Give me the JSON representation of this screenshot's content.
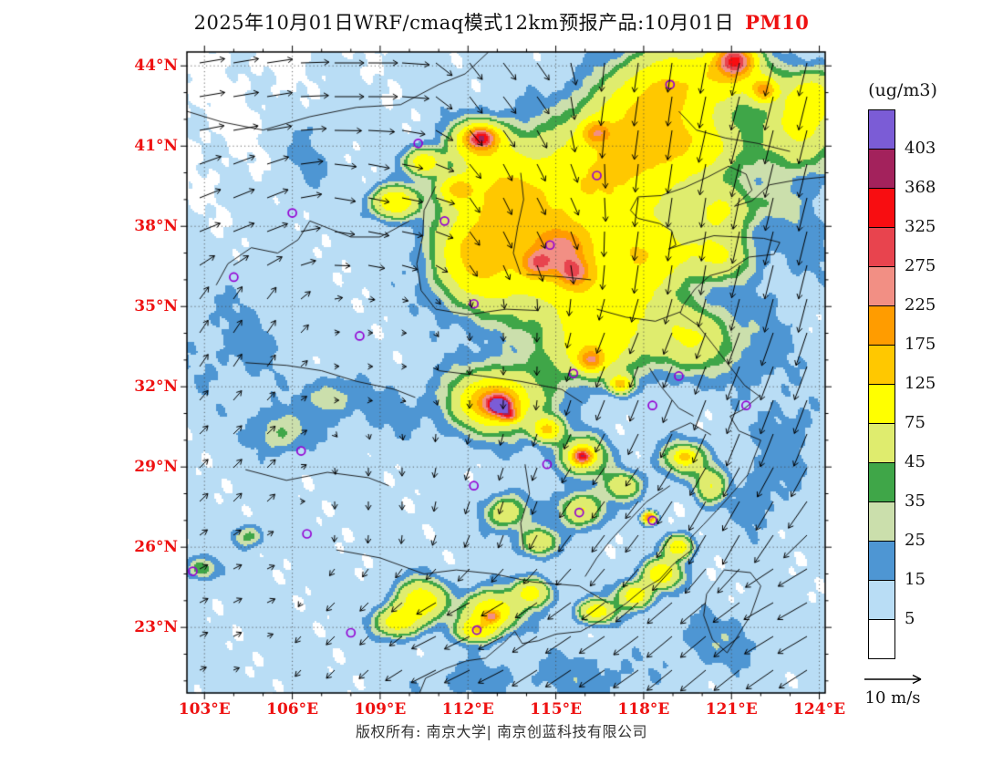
{
  "header": {
    "title": "2025年10月01日WRF/cmaq模式12km预报产品:10月01日",
    "species": "PM10"
  },
  "colors": {
    "axis_label": "#ee1111",
    "species": "#ee1111"
  },
  "axes": {
    "lat": [
      {
        "label": "44°N",
        "value": 44
      },
      {
        "label": "41°N",
        "value": 41
      },
      {
        "label": "38°N",
        "value": 38
      },
      {
        "label": "35°N",
        "value": 35
      },
      {
        "label": "32°N",
        "value": 32
      },
      {
        "label": "29°N",
        "value": 29
      },
      {
        "label": "26°N",
        "value": 26
      },
      {
        "label": "23°N",
        "value": 23
      }
    ],
    "lon": [
      {
        "label": "103°E",
        "value": 103
      },
      {
        "label": "106°E",
        "value": 106
      },
      {
        "label": "109°E",
        "value": 109
      },
      {
        "label": "112°E",
        "value": 112
      },
      {
        "label": "115°E",
        "value": 115
      },
      {
        "label": "118°E",
        "value": 118
      },
      {
        "label": "121°E",
        "value": 121
      },
      {
        "label": "124°E",
        "value": 124
      }
    ]
  },
  "colorbar": {
    "title": "(ug/m3)",
    "labels": [
      403,
      368,
      325,
      275,
      225,
      175,
      125,
      75,
      45,
      35,
      25,
      15,
      5
    ],
    "colors_top_to_bottom": [
      "#7B5CD6",
      "#A3225C",
      "#F80D11",
      "#E8444E",
      "#F28F84",
      "#FF9C00",
      "#FFC800",
      "#FFFF00",
      "#DFEC6E",
      "#3FA648",
      "#CBDFAC",
      "#4E96D3",
      "#B9DDF5",
      "#FFFFFF"
    ]
  },
  "wind_ref": {
    "label": "10 m/s",
    "speed_ms": 10
  },
  "footer": {
    "text": "版权所有: 南京大学| 南京创蓝科技有限公司"
  },
  "chart_data": {
    "type": "heatmap",
    "title": "2025年10月01日WRF/cmaq模式12km预报产品:10月01日 PM10",
    "units": "ug/m3",
    "legend_title": "(ug/m3)",
    "lon_range": [
      102.4,
      124.2
    ],
    "lat_range": [
      20.55,
      44.52
    ],
    "levels": [
      5,
      15,
      25,
      35,
      45,
      75,
      125,
      175,
      225,
      275,
      325,
      368,
      403
    ],
    "colors_low_to_high": [
      "#FFFFFF",
      "#B9DDF5",
      "#4E96D3",
      "#CBDFAC",
      "#3FA648",
      "#DFEC6E",
      "#FFFF00",
      "#FFC800",
      "#FF9C00",
      "#F28F84",
      "#E8444E",
      "#F80D11",
      "#A3225C",
      "#7B5CD6"
    ],
    "base_level": 8.5,
    "hotspots": [
      [
        116.5,
        39.5,
        2.6,
        2.2,
        95
      ],
      [
        114.0,
        37.0,
        2.2,
        2.2,
        95
      ],
      [
        117.8,
        41.5,
        1.8,
        1.8,
        90
      ],
      [
        118.8,
        43.2,
        1.4,
        1.4,
        95
      ],
      [
        116.8,
        35.2,
        1.8,
        1.6,
        85
      ],
      [
        113.2,
        39.3,
        1.4,
        1.4,
        85
      ],
      [
        112.2,
        36.9,
        1.2,
        1.5,
        90
      ],
      [
        118.2,
        37.0,
        1.5,
        1.2,
        80
      ],
      [
        119.9,
        41.0,
        1.4,
        1.2,
        70
      ],
      [
        120.7,
        38.6,
        1.0,
        0.9,
        65
      ],
      [
        120.6,
        36.9,
        1.1,
        0.9,
        60
      ],
      [
        119.6,
        33.8,
        1.4,
        1.2,
        65
      ],
      [
        116.2,
        33.4,
        1.4,
        1.1,
        75
      ],
      [
        123.2,
        41.6,
        1.3,
        1.5,
        70
      ],
      [
        123.8,
        42.9,
        0.9,
        0.9,
        70
      ],
      [
        115.2,
        37.2,
        0.8,
        0.7,
        145
      ],
      [
        115.6,
        36.3,
        0.5,
        0.5,
        185
      ],
      [
        114.4,
        36.6,
        0.5,
        0.45,
        160
      ],
      [
        116.4,
        41.5,
        0.45,
        0.4,
        140
      ],
      [
        112.45,
        41.3,
        0.45,
        0.35,
        270
      ],
      [
        112.4,
        41.1,
        1.0,
        0.8,
        100
      ],
      [
        121.1,
        44.2,
        0.55,
        0.5,
        270
      ],
      [
        120.9,
        43.7,
        1.2,
        1.0,
        105
      ],
      [
        122.1,
        43.1,
        0.4,
        0.4,
        150
      ],
      [
        109.5,
        38.9,
        0.7,
        0.55,
        110
      ],
      [
        110.5,
        40.4,
        0.55,
        0.45,
        100
      ],
      [
        111.6,
        39.4,
        0.6,
        0.5,
        105
      ],
      [
        113.0,
        31.5,
        1.6,
        1.2,
        85
      ],
      [
        112.9,
        31.4,
        0.8,
        0.6,
        150
      ],
      [
        113.05,
        31.35,
        0.38,
        0.3,
        260
      ],
      [
        113.1,
        31.25,
        0.22,
        0.18,
        430
      ],
      [
        113.4,
        30.95,
        0.3,
        0.22,
        210
      ],
      [
        114.7,
        30.4,
        0.45,
        0.4,
        125
      ],
      [
        115.9,
        29.4,
        0.8,
        0.7,
        80
      ],
      [
        115.9,
        29.4,
        0.28,
        0.25,
        290
      ],
      [
        116.2,
        33.0,
        0.4,
        0.35,
        160
      ],
      [
        117.2,
        32.1,
        0.35,
        0.3,
        130
      ],
      [
        110.4,
        24.0,
        0.8,
        0.7,
        95
      ],
      [
        109.6,
        23.2,
        0.7,
        0.5,
        90
      ],
      [
        112.8,
        23.6,
        0.9,
        0.7,
        100
      ],
      [
        112.3,
        22.9,
        0.6,
        0.4,
        95
      ],
      [
        112.8,
        23.4,
        0.25,
        0.2,
        170
      ],
      [
        114.2,
        24.3,
        0.6,
        0.5,
        80
      ],
      [
        118.6,
        25.0,
        0.6,
        0.5,
        100
      ],
      [
        117.7,
        24.2,
        0.55,
        0.45,
        95
      ],
      [
        119.2,
        26.0,
        0.45,
        0.4,
        95
      ],
      [
        118.2,
        27.1,
        0.2,
        0.18,
        230
      ],
      [
        116.4,
        23.6,
        0.6,
        0.4,
        90
      ],
      [
        115.9,
        27.4,
        0.7,
        0.6,
        68
      ],
      [
        113.3,
        27.3,
        0.7,
        0.6,
        58
      ],
      [
        114.4,
        26.2,
        0.6,
        0.5,
        62
      ],
      [
        117.3,
        28.3,
        0.6,
        0.5,
        58
      ],
      [
        119.4,
        29.3,
        0.8,
        0.6,
        58
      ],
      [
        119.4,
        29.4,
        0.3,
        0.25,
        85
      ],
      [
        120.3,
        28.3,
        0.5,
        0.6,
        62
      ],
      [
        105.6,
        30.3,
        0.9,
        0.8,
        28
      ],
      [
        107.3,
        31.6,
        0.8,
        0.7,
        24
      ],
      [
        102.9,
        25.2,
        0.5,
        0.4,
        38
      ],
      [
        104.5,
        26.4,
        0.5,
        0.4,
        32
      ],
      [
        122.6,
        38.9,
        0.9,
        0.7,
        16
      ],
      [
        123.5,
        37.5,
        1.0,
        1.5,
        12
      ],
      [
        122.0,
        33.5,
        1.2,
        2.0,
        11
      ],
      [
        123.0,
        30.0,
        1.0,
        1.5,
        13
      ],
      [
        121.8,
        27.8,
        0.7,
        1.3,
        15
      ],
      [
        120.5,
        22.5,
        1.5,
        1.0,
        13
      ],
      [
        116.0,
        21.2,
        2.0,
        0.9,
        12
      ],
      [
        112.0,
        21.0,
        1.8,
        0.8,
        11
      ],
      [
        106.5,
        40.8,
        1.3,
        2.0,
        11
      ],
      [
        104.0,
        33.5,
        1.8,
        2.2,
        9
      ],
      [
        109.0,
        31.0,
        1.5,
        1.2,
        8
      ]
    ],
    "stations": [
      [
        118.9,
        43.3
      ],
      [
        110.3,
        41.1
      ],
      [
        116.4,
        39.9
      ],
      [
        106.0,
        38.5
      ],
      [
        111.2,
        38.2
      ],
      [
        114.8,
        37.3
      ],
      [
        104.0,
        36.1
      ],
      [
        112.2,
        35.1
      ],
      [
        108.3,
        33.9
      ],
      [
        115.6,
        32.5
      ],
      [
        119.2,
        32.4
      ],
      [
        121.5,
        31.3
      ],
      [
        118.3,
        31.3
      ],
      [
        114.7,
        29.1
      ],
      [
        106.3,
        29.6
      ],
      [
        112.2,
        28.3
      ],
      [
        115.8,
        27.3
      ],
      [
        118.3,
        27.0
      ],
      [
        106.5,
        26.5
      ],
      [
        102.6,
        25.1
      ],
      [
        108.0,
        22.8
      ],
      [
        112.3,
        22.9
      ]
    ],
    "wind_anchors": [
      [
        104,
        43,
        6,
        1
      ],
      [
        108,
        43.5,
        7,
        0
      ],
      [
        113,
        43.5,
        3,
        -4
      ],
      [
        118,
        43,
        -1,
        -7
      ],
      [
        122,
        42,
        -2,
        -8
      ],
      [
        104,
        39,
        5,
        2
      ],
      [
        109,
        39,
        5,
        -1
      ],
      [
        114,
        39,
        2,
        -4
      ],
      [
        119,
        38,
        -1,
        -7
      ],
      [
        123,
        37,
        -2,
        -8
      ],
      [
        104,
        34,
        2,
        3
      ],
      [
        109,
        33,
        1,
        0
      ],
      [
        113,
        33,
        0,
        -2
      ],
      [
        118,
        33,
        -2,
        -5
      ],
      [
        122,
        32,
        -3,
        -8
      ],
      [
        104,
        29,
        2,
        2
      ],
      [
        109,
        28,
        0,
        -2
      ],
      [
        113,
        28,
        -1,
        -3
      ],
      [
        117,
        27,
        -3,
        -4
      ],
      [
        121,
        27,
        -4,
        -7
      ],
      [
        104,
        24,
        2,
        1
      ],
      [
        108,
        23,
        -2,
        -2
      ],
      [
        112,
        22,
        -6,
        -3
      ],
      [
        116,
        22,
        -6,
        -4
      ],
      [
        120,
        23,
        -6,
        -5
      ],
      [
        123,
        24,
        -7,
        -4
      ]
    ],
    "coastline": [
      [
        124.2,
        39.85
      ],
      [
        123.3,
        39.75
      ],
      [
        122.3,
        39.55
      ],
      [
        121.7,
        38.95
      ],
      [
        121.1,
        38.75
      ],
      [
        121.7,
        39.35
      ],
      [
        121.5,
        39.95
      ],
      [
        120.9,
        40.25
      ],
      [
        120.2,
        39.85
      ],
      [
        119.4,
        39.45
      ],
      [
        118.6,
        39.15
      ],
      [
        117.8,
        39.1
      ],
      [
        117.55,
        38.6
      ],
      [
        117.8,
        38.3
      ],
      [
        118.55,
        38.1
      ],
      [
        118.95,
        37.85
      ],
      [
        119.1,
        37.3
      ],
      [
        118.85,
        37.15
      ],
      [
        119.55,
        37.4
      ],
      [
        120.4,
        37.65
      ],
      [
        121.2,
        37.6
      ],
      [
        122.1,
        37.55
      ],
      [
        122.65,
        37.4
      ],
      [
        122.45,
        36.95
      ],
      [
        121.6,
        36.85
      ],
      [
        120.9,
        36.35
      ],
      [
        120.25,
        36.15
      ],
      [
        119.75,
        35.65
      ],
      [
        119.35,
        35.05
      ],
      [
        119.25,
        34.75
      ],
      [
        119.85,
        34.3
      ],
      [
        120.35,
        33.6
      ],
      [
        120.95,
        32.75
      ],
      [
        121.45,
        32.05
      ],
      [
        121.95,
        31.65
      ],
      [
        121.4,
        31.15
      ],
      [
        120.95,
        30.9
      ],
      [
        121.25,
        30.35
      ],
      [
        122.0,
        30.0
      ],
      [
        121.75,
        29.3
      ],
      [
        121.55,
        28.7
      ],
      [
        121.05,
        28.05
      ],
      [
        120.65,
        27.55
      ],
      [
        120.05,
        26.85
      ],
      [
        119.6,
        26.35
      ],
      [
        119.7,
        25.95
      ],
      [
        119.0,
        25.35
      ],
      [
        118.55,
        24.8
      ],
      [
        117.95,
        24.4
      ],
      [
        117.4,
        23.9
      ],
      [
        116.6,
        23.3
      ],
      [
        115.85,
        22.85
      ],
      [
        115.0,
        22.75
      ],
      [
        114.4,
        22.5
      ],
      [
        113.85,
        22.4
      ],
      [
        113.6,
        22.85
      ],
      [
        113.25,
        22.45
      ],
      [
        112.6,
        21.85
      ],
      [
        111.95,
        21.75
      ],
      [
        111.2,
        21.45
      ],
      [
        110.55,
        21.1
      ],
      [
        110.35,
        20.55
      ]
    ],
    "islands": [
      [
        [
          120.75,
          25.15
        ],
        [
          121.65,
          25.05
        ],
        [
          122.0,
          24.55
        ],
        [
          121.65,
          23.45
        ],
        [
          121.25,
          22.75
        ],
        [
          120.85,
          22.05
        ],
        [
          120.35,
          22.55
        ],
        [
          120.05,
          23.45
        ],
        [
          120.15,
          24.25
        ],
        [
          120.75,
          25.15
        ]
      ]
    ],
    "borders": [
      [
        [
          102.4,
          42.3
        ],
        [
          103.6,
          41.9
        ],
        [
          105.0,
          41.6
        ],
        [
          106.6,
          42.1
        ],
        [
          108.2,
          42.45
        ],
        [
          109.7,
          42.55
        ],
        [
          111.0,
          43.3
        ],
        [
          111.9,
          43.7
        ],
        [
          112.7,
          44.52
        ]
      ],
      [
        [
          110.9,
          39.5
        ],
        [
          110.5,
          38.6
        ],
        [
          110.45,
          37.6
        ],
        [
          110.25,
          36.6
        ],
        [
          110.4,
          35.6
        ],
        [
          110.9,
          34.9
        ],
        [
          112.0,
          34.7
        ],
        [
          113.3,
          34.9
        ],
        [
          114.4,
          34.85
        ]
      ],
      [
        [
          113.8,
          40.0
        ],
        [
          113.9,
          39.0
        ],
        [
          113.7,
          38.0
        ],
        [
          113.55,
          37.0
        ],
        [
          113.8,
          36.2
        ]
      ],
      [
        [
          116.4,
          34.9
        ],
        [
          117.4,
          34.6
        ],
        [
          118.4,
          34.45
        ],
        [
          119.25,
          34.8
        ]
      ],
      [
        [
          104.4,
          32.9
        ],
        [
          105.8,
          32.8
        ],
        [
          107.0,
          32.6
        ],
        [
          108.2,
          32.2
        ],
        [
          109.5,
          31.9
        ],
        [
          110.2,
          31.6
        ]
      ],
      [
        [
          111.0,
          32.6
        ],
        [
          112.5,
          32.4
        ],
        [
          113.8,
          32.2
        ],
        [
          115.2,
          31.9
        ],
        [
          115.9,
          31.4
        ]
      ],
      [
        [
          107.5,
          25.9
        ],
        [
          109.0,
          25.6
        ],
        [
          110.5,
          25.0
        ],
        [
          111.6,
          25.15
        ],
        [
          112.9,
          25.0
        ],
        [
          114.2,
          24.7
        ],
        [
          115.8,
          24.55
        ],
        [
          116.8,
          23.9
        ]
      ],
      [
        [
          118.9,
          28.3
        ],
        [
          118.1,
          27.7
        ],
        [
          117.5,
          27.0
        ],
        [
          116.9,
          26.3
        ],
        [
          116.4,
          25.6
        ],
        [
          116.0,
          24.9
        ]
      ],
      [
        [
          119.2,
          42.3
        ],
        [
          119.8,
          41.6
        ],
        [
          120.8,
          41.3
        ],
        [
          121.9,
          41.1
        ],
        [
          123.0,
          40.8
        ]
      ],
      [
        [
          113.95,
          29.1
        ],
        [
          114.1,
          28.0
        ],
        [
          113.8,
          26.9
        ],
        [
          113.9,
          25.9
        ]
      ],
      [
        [
          104.4,
          28.9
        ],
        [
          105.8,
          28.5
        ],
        [
          107.2,
          28.8
        ],
        [
          108.6,
          28.6
        ],
        [
          109.3,
          28.3
        ]
      ],
      [
        [
          114.0,
          36.2
        ],
        [
          115.3,
          36.1
        ],
        [
          116.2,
          36.0
        ]
      ],
      [
        [
          118.2,
          32.7
        ],
        [
          118.6,
          32.0
        ],
        [
          119.2,
          31.2
        ],
        [
          119.7,
          30.9
        ]
      ],
      [
        [
          110.0,
          38.2
        ],
        [
          109.0,
          37.6
        ],
        [
          108.0,
          37.6
        ],
        [
          107.3,
          37.9
        ],
        [
          106.6,
          38.2
        ],
        [
          106.2,
          37.5
        ],
        [
          105.5,
          37.0
        ],
        [
          104.6,
          37.2
        ],
        [
          103.8,
          36.6
        ],
        [
          103.4,
          35.8
        ]
      ],
      [
        [
          118.9,
          30.3
        ],
        [
          119.6,
          30.65
        ],
        [
          120.3,
          30.2
        ]
      ]
    ]
  }
}
